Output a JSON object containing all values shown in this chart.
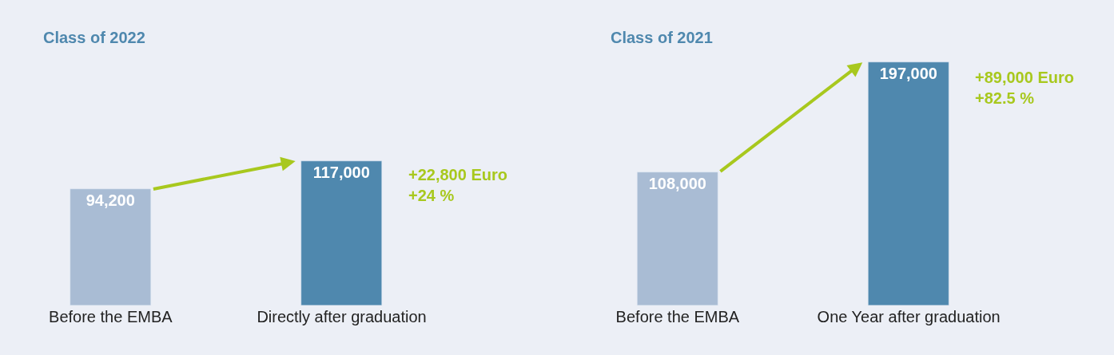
{
  "chart_data": [
    {
      "type": "bar",
      "title": "Class of 2022",
      "categories": [
        "Before the EMBA",
        "Directly after graduation"
      ],
      "values": [
        94200,
        117000
      ],
      "colors": [
        "#a9bcd4",
        "#4f88ae"
      ],
      "value_labels": [
        "94,200",
        "117,000"
      ],
      "annotations": [
        "+22,800 Euro",
        "+24 %"
      ]
    },
    {
      "type": "bar",
      "title": "Class of 2021",
      "categories": [
        "Before the EMBA",
        "One Year after graduation"
      ],
      "values": [
        108000,
        197000
      ],
      "colors": [
        "#a9bcd4",
        "#4f88ae"
      ],
      "value_labels": [
        "108,000",
        "197,000"
      ],
      "annotations": [
        "+89,000 Euro",
        "+82.5 %"
      ]
    }
  ]
}
